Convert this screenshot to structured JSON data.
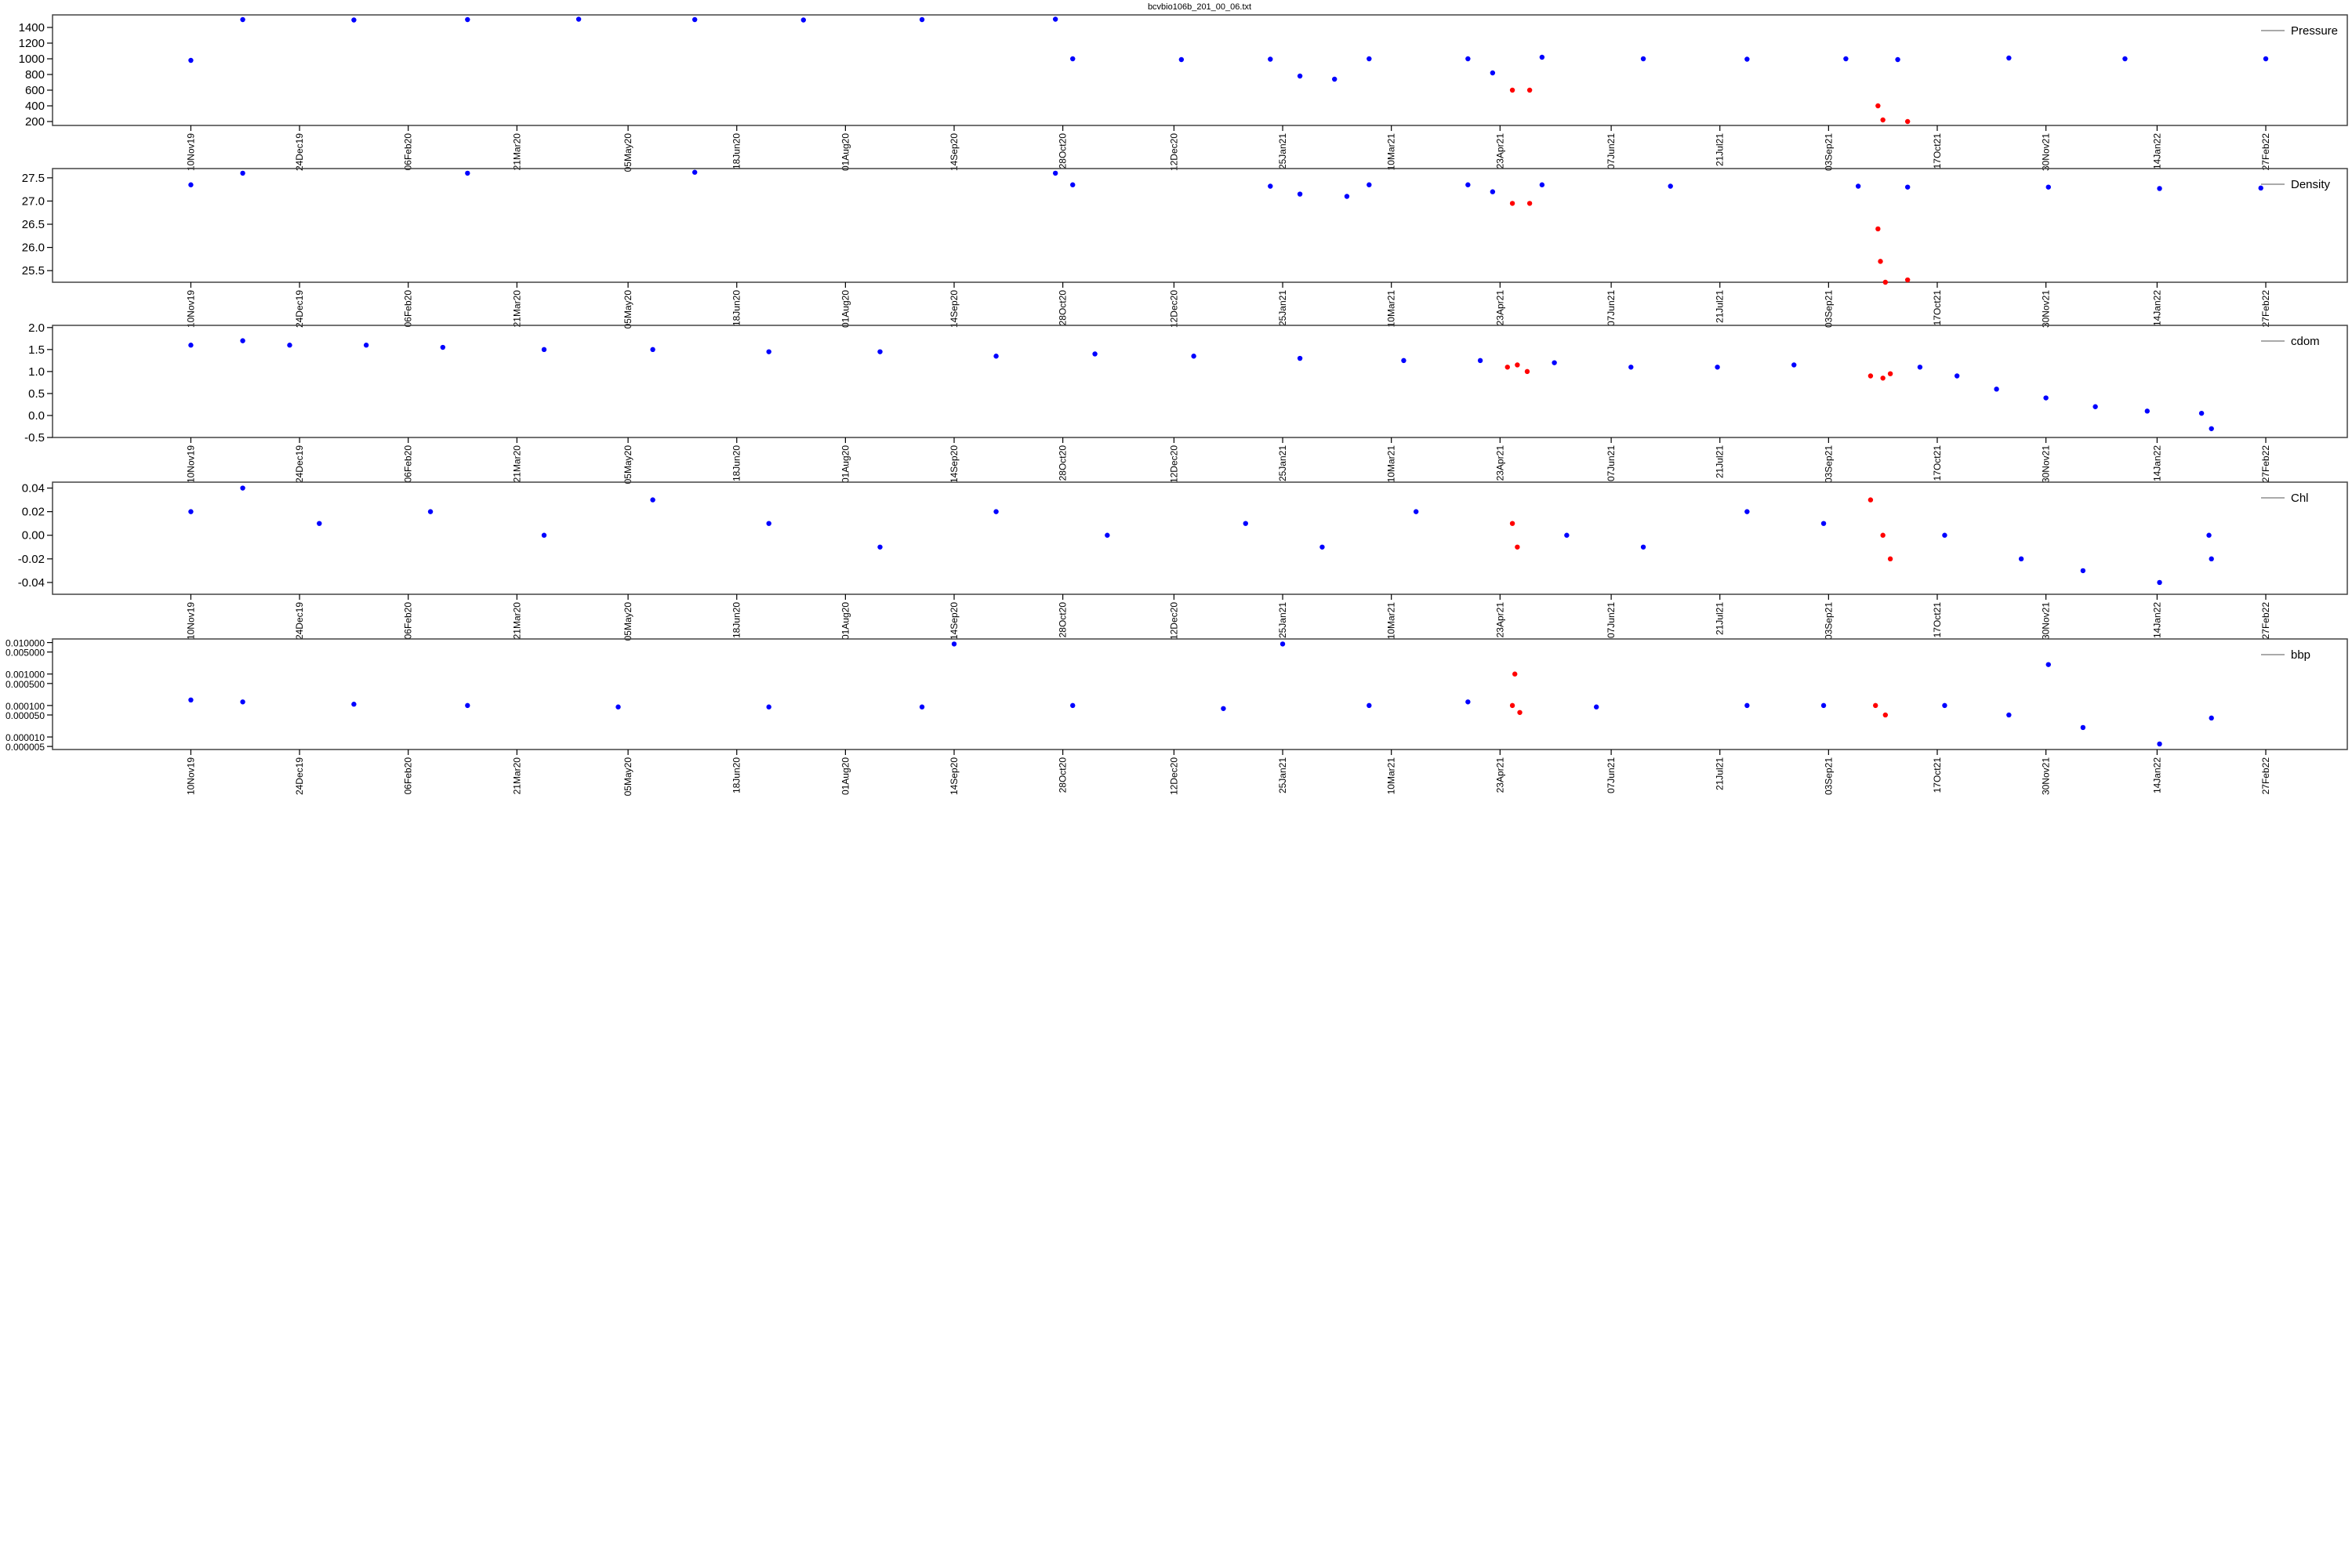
{
  "chart_data": [
    {
      "type": "scatter",
      "title": "bcvbio106b_201_00_06.txt",
      "legend": "Pressure",
      "xlim": [
        "2019-09-15",
        "2022-04-01"
      ],
      "ylim": [
        150,
        1560
      ],
      "yticks": [
        200,
        400,
        600,
        800,
        1000,
        1200,
        1400
      ],
      "xticks": [
        {
          "value": "2019-11-10",
          "label": "10Nov19"
        },
        {
          "value": "2019-12-24",
          "label": "24Dec19"
        },
        {
          "value": "2020-02-06",
          "label": "06Feb20"
        },
        {
          "value": "2020-03-21",
          "label": "21Mar20"
        },
        {
          "value": "2020-05-05",
          "label": "05May20"
        },
        {
          "value": "2020-06-18",
          "label": "18Jun20"
        },
        {
          "value": "2020-08-01",
          "label": "01Aug20"
        },
        {
          "value": "2020-09-14",
          "label": "14Sep20"
        },
        {
          "value": "2020-10-28",
          "label": "28Oct20"
        },
        {
          "value": "2020-12-12",
          "label": "12Dec20"
        },
        {
          "value": "2021-01-25",
          "label": "25Jan21"
        },
        {
          "value": "2021-03-10",
          "label": "10Mar21"
        },
        {
          "value": "2021-04-23",
          "label": "23Apr21"
        },
        {
          "value": "2021-06-07",
          "label": "07Jun21"
        },
        {
          "value": "2021-07-21",
          "label": "21Jul21"
        },
        {
          "value": "2021-09-03",
          "label": "03Sep21"
        },
        {
          "value": "2021-10-17",
          "label": "17Oct21"
        },
        {
          "value": "2021-11-30",
          "label": "30Nov21"
        },
        {
          "value": "2022-01-14",
          "label": "14Jan22"
        },
        {
          "value": "2022-02-27",
          "label": "27Feb22"
        }
      ],
      "series": [
        {
          "color": "#0000ff",
          "x": [
            "2019-11-10",
            "2019-12-01",
            "2020-01-15",
            "2020-03-01",
            "2020-04-15",
            "2020-06-01",
            "2020-07-15",
            "2020-09-01",
            "2020-10-25",
            "2020-11-01",
            "2020-12-15",
            "2021-01-20",
            "2021-02-01",
            "2021-02-15",
            "2021-03-01",
            "2021-04-10",
            "2021-04-20",
            "2021-05-10",
            "2021-06-20",
            "2021-08-01",
            "2021-09-10",
            "2021-10-01",
            "2021-11-15",
            "2022-01-01",
            "2022-02-27"
          ],
          "values": [
            980,
            1500,
            1495,
            1500,
            1505,
            1500,
            1495,
            1500,
            1505,
            1000,
            990,
            995,
            780,
            740,
            1000,
            1000,
            820,
            1020,
            1000,
            995,
            1000,
            990,
            1010,
            1000,
            1000
          ]
        },
        {
          "color": "#ff0000",
          "x": [
            "2021-04-28",
            "2021-05-05",
            "2021-09-23",
            "2021-09-25",
            "2021-10-05"
          ],
          "values": [
            600,
            600,
            400,
            220,
            200
          ]
        }
      ]
    },
    {
      "type": "scatter",
      "legend": "Density",
      "xlim": [
        "2019-09-15",
        "2022-04-01"
      ],
      "ylim": [
        25.25,
        27.7
      ],
      "yticks": [
        25.5,
        {
          "value": 26,
          "label": "26.0"
        },
        26.5,
        {
          "value": 27,
          "label": "27.0"
        },
        27.5
      ],
      "xticks": [
        {
          "value": "2019-11-10",
          "label": "10Nov19"
        },
        {
          "value": "2019-12-24",
          "label": "24Dec19"
        },
        {
          "value": "2020-02-06",
          "label": "06Feb20"
        },
        {
          "value": "2020-03-21",
          "label": "21Mar20"
        },
        {
          "value": "2020-05-05",
          "label": "05May20"
        },
        {
          "value": "2020-06-18",
          "label": "18Jun20"
        },
        {
          "value": "2020-08-01",
          "label": "01Aug20"
        },
        {
          "value": "2020-09-14",
          "label": "14Sep20"
        },
        {
          "value": "2020-10-28",
          "label": "28Oct20"
        },
        {
          "value": "2020-12-12",
          "label": "12Dec20"
        },
        {
          "value": "2021-01-25",
          "label": "25Jan21"
        },
        {
          "value": "2021-03-10",
          "label": "10Mar21"
        },
        {
          "value": "2021-04-23",
          "label": "23Apr21"
        },
        {
          "value": "2021-06-07",
          "label": "07Jun21"
        },
        {
          "value": "2021-07-21",
          "label": "21Jul21"
        },
        {
          "value": "2021-09-03",
          "label": "03Sep21"
        },
        {
          "value": "2021-10-17",
          "label": "17Oct21"
        },
        {
          "value": "2021-11-30",
          "label": "30Nov21"
        },
        {
          "value": "2022-01-14",
          "label": "14Jan22"
        },
        {
          "value": "2022-02-27",
          "label": "27Feb22"
        }
      ],
      "series": [
        {
          "color": "#0000ff",
          "x": [
            "2019-11-10",
            "2019-12-01",
            "2020-03-01",
            "2020-06-01",
            "2020-10-25",
            "2020-11-01",
            "2021-01-20",
            "2021-02-01",
            "2021-02-20",
            "2021-03-01",
            "2021-04-10",
            "2021-04-20",
            "2021-05-10",
            "2021-07-01",
            "2021-09-15",
            "2021-10-05",
            "2021-12-01",
            "2022-01-15",
            "2022-02-25"
          ],
          "values": [
            27.35,
            27.6,
            27.6,
            27.62,
            27.6,
            27.35,
            27.32,
            27.15,
            27.1,
            27.35,
            27.35,
            27.2,
            27.35,
            27.32,
            27.32,
            27.3,
            27.3,
            27.27,
            27.28
          ]
        },
        {
          "color": "#ff0000",
          "x": [
            "2021-04-28",
            "2021-05-05",
            "2021-09-23",
            "2021-09-24",
            "2021-09-26",
            "2021-10-05"
          ],
          "values": [
            26.95,
            26.95,
            26.4,
            25.7,
            25.25,
            25.3
          ]
        }
      ]
    },
    {
      "type": "scatter",
      "legend": "cdom",
      "xlim": [
        "2019-09-15",
        "2022-04-01"
      ],
      "ylim": [
        -0.5,
        2.05
      ],
      "yticks": [
        -0.5,
        {
          "value": 0,
          "label": "0.0"
        },
        0.5,
        {
          "value": 1,
          "label": "1.0"
        },
        1.5,
        {
          "value": 2,
          "label": "2.0"
        }
      ],
      "xticks": [
        {
          "value": "2019-11-10",
          "label": "10Nov19"
        },
        {
          "value": "2019-12-24",
          "label": "24Dec19"
        },
        {
          "value": "2020-02-06",
          "label": "06Feb20"
        },
        {
          "value": "2020-03-21",
          "label": "21Mar20"
        },
        {
          "value": "2020-05-05",
          "label": "05May20"
        },
        {
          "value": "2020-06-18",
          "label": "18Jun20"
        },
        {
          "value": "2020-08-01",
          "label": "01Aug20"
        },
        {
          "value": "2020-09-14",
          "label": "14Sep20"
        },
        {
          "value": "2020-10-28",
          "label": "28Oct20"
        },
        {
          "value": "2020-12-12",
          "label": "12Dec20"
        },
        {
          "value": "2021-01-25",
          "label": "25Jan21"
        },
        {
          "value": "2021-03-10",
          "label": "10Mar21"
        },
        {
          "value": "2021-04-23",
          "label": "23Apr21"
        },
        {
          "value": "2021-06-07",
          "label": "07Jun21"
        },
        {
          "value": "2021-07-21",
          "label": "21Jul21"
        },
        {
          "value": "2021-09-03",
          "label": "03Sep21"
        },
        {
          "value": "2021-10-17",
          "label": "17Oct21"
        },
        {
          "value": "2021-11-30",
          "label": "30Nov21"
        },
        {
          "value": "2022-01-14",
          "label": "14Jan22"
        },
        {
          "value": "2022-02-27",
          "label": "27Feb22"
        }
      ],
      "series": [
        {
          "color": "#0000ff",
          "x": [
            "2019-11-10",
            "2019-12-01",
            "2019-12-20",
            "2020-01-20",
            "2020-02-20",
            "2020-04-01",
            "2020-05-15",
            "2020-07-01",
            "2020-08-15",
            "2020-10-01",
            "2020-11-10",
            "2020-12-20",
            "2021-02-01",
            "2021-03-15",
            "2021-04-15",
            "2021-05-15",
            "2021-06-15",
            "2021-07-20",
            "2021-08-20",
            "2021-10-10",
            "2021-10-25",
            "2021-11-10",
            "2021-11-30",
            "2021-12-20",
            "2022-01-10",
            "2022-02-01",
            "2022-02-05"
          ],
          "values": [
            1.6,
            1.7,
            1.6,
            1.6,
            1.55,
            1.5,
            1.5,
            1.45,
            1.45,
            1.35,
            1.4,
            1.35,
            1.3,
            1.25,
            1.25,
            1.2,
            1.1,
            1.1,
            1.15,
            1.1,
            0.9,
            0.6,
            0.4,
            0.2,
            0.1,
            0.05,
            -0.3
          ]
        },
        {
          "color": "#ff0000",
          "x": [
            "2021-04-26",
            "2021-04-30",
            "2021-05-04",
            "2021-09-20",
            "2021-09-25",
            "2021-09-28"
          ],
          "values": [
            1.1,
            1.15,
            1.0,
            0.9,
            0.85,
            0.95
          ]
        }
      ]
    },
    {
      "type": "scatter",
      "legend": "Chl",
      "xlim": [
        "2019-09-15",
        "2022-04-01"
      ],
      "ylim": [
        -0.05,
        0.045
      ],
      "yticks": [
        -0.04,
        -0.02,
        {
          "value": 0,
          "label": "0.00"
        },
        0.02,
        0.04
      ],
      "xticks": [
        {
          "value": "2019-11-10",
          "label": "10Nov19"
        },
        {
          "value": "2019-12-24",
          "label": "24Dec19"
        },
        {
          "value": "2020-02-06",
          "label": "06Feb20"
        },
        {
          "value": "2020-03-21",
          "label": "21Mar20"
        },
        {
          "value": "2020-05-05",
          "label": "05May20"
        },
        {
          "value": "2020-06-18",
          "label": "18Jun20"
        },
        {
          "value": "2020-08-01",
          "label": "01Aug20"
        },
        {
          "value": "2020-09-14",
          "label": "14Sep20"
        },
        {
          "value": "2020-10-28",
          "label": "28Oct20"
        },
        {
          "value": "2020-12-12",
          "label": "12Dec20"
        },
        {
          "value": "2021-01-25",
          "label": "25Jan21"
        },
        {
          "value": "2021-03-10",
          "label": "10Mar21"
        },
        {
          "value": "2021-04-23",
          "label": "23Apr21"
        },
        {
          "value": "2021-06-07",
          "label": "07Jun21"
        },
        {
          "value": "2021-07-21",
          "label": "21Jul21"
        },
        {
          "value": "2021-09-03",
          "label": "03Sep21"
        },
        {
          "value": "2021-10-17",
          "label": "17Oct21"
        },
        {
          "value": "2021-11-30",
          "label": "30Nov21"
        },
        {
          "value": "2022-01-14",
          "label": "14Jan22"
        },
        {
          "value": "2022-02-27",
          "label": "27Feb22"
        }
      ],
      "series": [
        {
          "color": "#0000ff",
          "x": [
            "2019-11-10",
            "2019-12-01",
            "2020-01-01",
            "2020-02-15",
            "2020-04-01",
            "2020-05-15",
            "2020-07-01",
            "2020-08-15",
            "2020-10-01",
            "2020-11-15",
            "2021-01-10",
            "2021-02-10",
            "2021-03-20",
            "2021-05-20",
            "2021-06-20",
            "2021-08-01",
            "2021-09-01",
            "2021-10-20",
            "2021-11-20",
            "2021-12-15",
            "2022-01-15",
            "2022-02-05",
            "2022-02-04"
          ],
          "values": [
            0.02,
            0.04,
            0.01,
            0.02,
            0,
            0.03,
            0.01,
            -0.01,
            0.02,
            0,
            0.01,
            -0.01,
            0.02,
            0,
            -0.01,
            0.02,
            0.01,
            0,
            -0.02,
            -0.03,
            -0.04,
            -0.02,
            0
          ]
        },
        {
          "color": "#ff0000",
          "x": [
            "2021-04-28",
            "2021-04-30",
            "2021-09-20",
            "2021-09-25",
            "2021-09-28"
          ],
          "values": [
            0.01,
            -0.01,
            0.03,
            0,
            -0.02
          ]
        }
      ]
    },
    {
      "type": "scatter",
      "legend": "bbp",
      "log_y": true,
      "xlim": [
        "2019-09-15",
        "2022-04-01"
      ],
      "ylim": [
        4e-06,
        0.013
      ],
      "yticks": [
        {
          "value": 5e-06,
          "label": "0.000005"
        },
        {
          "value": 1e-05,
          "label": "0.000010"
        },
        {
          "value": 5e-05,
          "label": "0.000050"
        },
        {
          "value": 0.0001,
          "label": "0.000100"
        },
        {
          "value": 0.0005,
          "label": "0.000500"
        },
        {
          "value": 0.001,
          "label": "0.001000"
        },
        {
          "value": 0.005,
          "label": "0.005000"
        },
        {
          "value": 0.01,
          "label": "0.010000"
        }
      ],
      "xticks": [
        {
          "value": "2019-11-10",
          "label": "10Nov19"
        },
        {
          "value": "2019-12-24",
          "label": "24Dec19"
        },
        {
          "value": "2020-02-06",
          "label": "06Feb20"
        },
        {
          "value": "2020-03-21",
          "label": "21Mar20"
        },
        {
          "value": "2020-05-05",
          "label": "05May20"
        },
        {
          "value": "2020-06-18",
          "label": "18Jun20"
        },
        {
          "value": "2020-08-01",
          "label": "01Aug20"
        },
        {
          "value": "2020-09-14",
          "label": "14Sep20"
        },
        {
          "value": "2020-10-28",
          "label": "28Oct20"
        },
        {
          "value": "2020-12-12",
          "label": "12Dec20"
        },
        {
          "value": "2021-01-25",
          "label": "25Jan21"
        },
        {
          "value": "2021-03-10",
          "label": "10Mar21"
        },
        {
          "value": "2021-04-23",
          "label": "23Apr21"
        },
        {
          "value": "2021-06-07",
          "label": "07Jun21"
        },
        {
          "value": "2021-07-21",
          "label": "21Jul21"
        },
        {
          "value": "2021-09-03",
          "label": "03Sep21"
        },
        {
          "value": "2021-10-17",
          "label": "17Oct21"
        },
        {
          "value": "2021-11-30",
          "label": "30Nov21"
        },
        {
          "value": "2022-01-14",
          "label": "14Jan22"
        },
        {
          "value": "2022-02-27",
          "label": "27Feb22"
        }
      ],
      "series": [
        {
          "color": "#0000ff",
          "x": [
            "2019-11-10",
            "2019-12-01",
            "2020-01-15",
            "2020-03-01",
            "2020-05-01",
            "2020-07-01",
            "2020-09-01",
            "2020-09-14",
            "2020-11-01",
            "2021-01-01",
            "2021-01-25",
            "2021-03-01",
            "2021-04-10",
            "2021-06-01",
            "2021-08-01",
            "2021-09-01",
            "2021-10-20",
            "2021-11-15",
            "2021-12-15",
            "2022-01-15",
            "2022-02-05",
            "2021-12-01"
          ],
          "values": [
            0.00015,
            0.00013,
            0.00011,
            0.0001,
            9e-05,
            9e-05,
            9e-05,
            0.009,
            0.0001,
            8e-05,
            0.009,
            0.0001,
            0.00013,
            9e-05,
            0.0001,
            0.0001,
            0.0001,
            5e-05,
            2e-05,
            6e-06,
            4e-05,
            0.002
          ]
        },
        {
          "color": "#ff0000",
          "x": [
            "2021-04-28",
            "2021-05-01",
            "2021-04-29",
            "2021-09-22",
            "2021-09-26"
          ],
          "values": [
            0.0001,
            6e-05,
            0.001,
            0.0001,
            5e-05
          ]
        }
      ]
    }
  ]
}
